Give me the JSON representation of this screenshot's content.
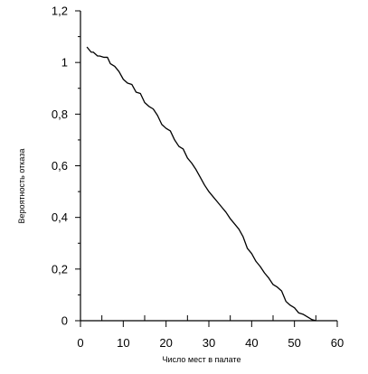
{
  "chart_data": {
    "type": "line",
    "title": "",
    "xlabel": "Число мест в палате",
    "ylabel": "Вероятность отказа",
    "xlim": [
      0,
      60
    ],
    "ylim": [
      0,
      1.2
    ],
    "x_ticks": [
      0,
      10,
      20,
      30,
      40,
      50,
      60
    ],
    "x_tick_labels": [
      "0",
      "10",
      "20",
      "30",
      "40",
      "50",
      "60"
    ],
    "y_ticks": [
      0,
      0.2,
      0.4,
      0.6,
      0.8,
      1,
      1.2
    ],
    "y_tick_labels": [
      "0",
      "0,2",
      "0,4",
      "0,6",
      "0,8",
      "1",
      "1,2"
    ],
    "grid": false,
    "series": [
      {
        "color": "#000000",
        "x": [
          1.5,
          2.5,
          3,
          4,
          4.5,
          5.5,
          6.3,
          7,
          8,
          9,
          10,
          11,
          12,
          13,
          14,
          15,
          16,
          17,
          18,
          19,
          20,
          21,
          22,
          23,
          24,
          25,
          26,
          27,
          28,
          29,
          30,
          31,
          32,
          33,
          34,
          35,
          36,
          37,
          38,
          39,
          40,
          41,
          42,
          43,
          44,
          45,
          46,
          47,
          48,
          49,
          50,
          51,
          52,
          53,
          54,
          55
        ],
        "y": [
          1.06,
          1.04,
          1.04,
          1.025,
          1.025,
          1.02,
          1.02,
          0.995,
          0.985,
          0.965,
          0.935,
          0.92,
          0.915,
          0.885,
          0.88,
          0.845,
          0.83,
          0.82,
          0.795,
          0.76,
          0.745,
          0.735,
          0.7,
          0.675,
          0.665,
          0.63,
          0.61,
          0.585,
          0.555,
          0.525,
          0.5,
          0.48,
          0.46,
          0.44,
          0.42,
          0.395,
          0.375,
          0.355,
          0.325,
          0.28,
          0.26,
          0.23,
          0.21,
          0.185,
          0.165,
          0.14,
          0.13,
          0.115,
          0.075,
          0.06,
          0.05,
          0.03,
          0.025,
          0.015,
          0.005,
          0
        ]
      }
    ]
  }
}
